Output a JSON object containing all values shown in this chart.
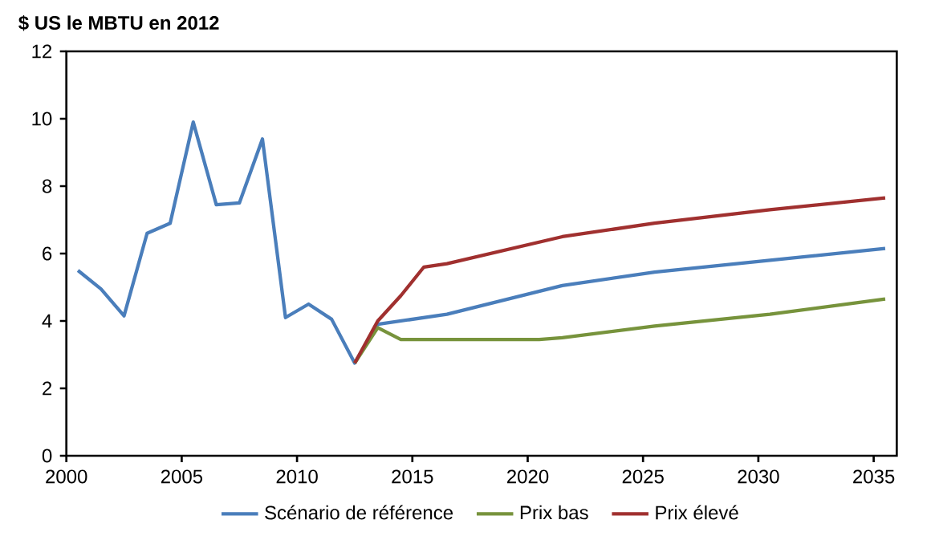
{
  "chart_data": {
    "type": "line",
    "ylabel": "$ US le MBTU en 2012",
    "xlim": [
      2000,
      2036
    ],
    "ylim": [
      0,
      12
    ],
    "xticks": [
      2000,
      2005,
      2010,
      2015,
      2020,
      2025,
      2030,
      2035
    ],
    "yticks": [
      0,
      2,
      4,
      6,
      8,
      10,
      12
    ],
    "grid": false,
    "legend": "bottom",
    "marker": "none",
    "line_style": "solid",
    "series": [
      {
        "name": "Scénario de référence",
        "color": "#4a7ebb",
        "x": [
          2000.5,
          2001.5,
          2002.5,
          2003.5,
          2004.5,
          2005.5,
          2006.5,
          2007.5,
          2008.5,
          2009.5,
          2010.5,
          2011.5,
          2012.5,
          2013.5,
          2016.5,
          2021.5,
          2025.5,
          2030.5,
          2035.5
        ],
        "values": [
          5.5,
          4.95,
          4.15,
          6.6,
          6.9,
          9.9,
          7.45,
          7.5,
          9.4,
          4.1,
          4.5,
          4.05,
          2.75,
          3.9,
          4.2,
          5.05,
          5.45,
          5.8,
          6.15
        ]
      },
      {
        "name": "Prix bas",
        "color": "#77933c",
        "x": [
          2012.5,
          2013.5,
          2014.5,
          2020.5,
          2021.5,
          2025.5,
          2030.5,
          2035.5
        ],
        "values": [
          2.75,
          3.8,
          3.45,
          3.45,
          3.5,
          3.85,
          4.2,
          4.65
        ]
      },
      {
        "name": "Prix élevé",
        "color": "#a0302f",
        "x": [
          2012.5,
          2013.5,
          2014.5,
          2015.5,
          2016.5,
          2021.5,
          2025.5,
          2030.5,
          2035.5
        ],
        "values": [
          2.75,
          4.0,
          4.75,
          5.6,
          5.7,
          6.5,
          6.9,
          7.3,
          7.65
        ]
      }
    ]
  }
}
